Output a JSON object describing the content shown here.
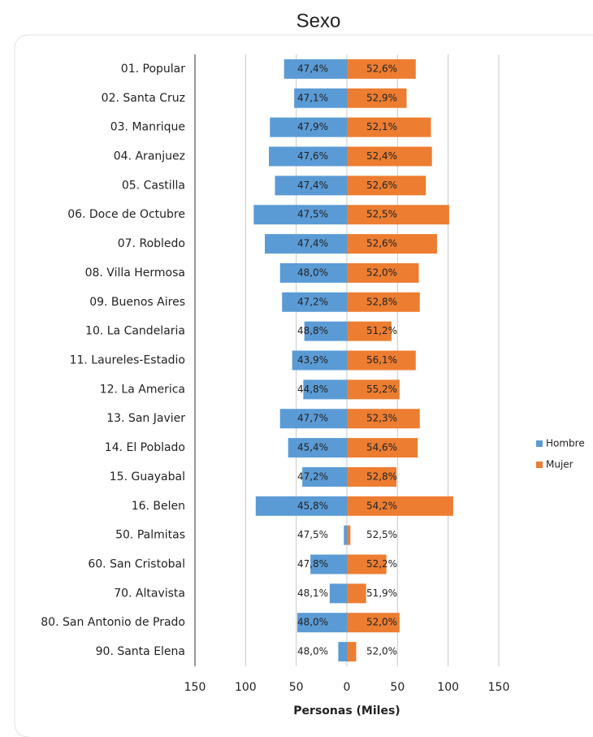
{
  "chart_data": {
    "type": "bar",
    "orientation": "horizontal",
    "stacked": true,
    "title": "Sexo",
    "x_label": "Personas (Miles)",
    "categories": [
      "01. Popular",
      "02. Santa Cruz",
      "03. Manrique",
      "04. Aranjuez",
      "05. Castilla",
      "06. Doce de Octubre",
      "07. Robledo",
      "08. Villa Hermosa",
      "09. Buenos Aires",
      "10. La Candelaria",
      "11. Laureles-Estadio",
      "12. La America",
      "13. San Javier",
      "14. El Poblado",
      "15. Guayabal",
      "16. Belen",
      "50. Palmitas",
      "60. San Cristobal",
      "70. Altavista",
      "80. San Antonio de Prado",
      "90. Santa Elena"
    ],
    "series": [
      {
        "name": "Hombre",
        "color": "#5b9bd5",
        "values": [
          -62,
          -52,
          -76,
          -77,
          -71,
          -92,
          -81,
          -66,
          -64,
          -42,
          -54,
          -43,
          -66,
          -58,
          -44,
          -90,
          -3,
          -36,
          -17,
          -49,
          -8.5
        ],
        "share_labels": [
          "47,4%",
          "47,1%",
          "47,9%",
          "47,6%",
          "47,4%",
          "47,5%",
          "47,4%",
          "48,0%",
          "47,2%",
          "48,8%",
          "43,9%",
          "44,8%",
          "47,7%",
          "45,4%",
          "47,2%",
          "45,8%",
          "47,5%",
          "47,8%",
          "48,1%",
          "48,0%",
          "48,0%"
        ]
      },
      {
        "name": "Mujer",
        "color": "#ed7d31",
        "values": [
          68,
          59,
          83,
          84,
          78,
          101,
          89,
          71,
          72,
          44,
          68,
          52,
          72,
          70,
          49,
          105,
          3.5,
          39,
          19,
          52,
          9.2
        ],
        "share_labels": [
          "52,6%",
          "52,9%",
          "52,1%",
          "52,4%",
          "52,6%",
          "52,5%",
          "52,6%",
          "52,0%",
          "52,8%",
          "51,2%",
          "56,1%",
          "55,2%",
          "52,3%",
          "54,6%",
          "52,8%",
          "54,2%",
          "52,5%",
          "52,2%",
          "51,9%",
          "52,0%",
          "52,0%"
        ]
      }
    ],
    "xlim": [
      -150,
      150
    ],
    "xticks": [
      {
        "value": -150,
        "label": "150"
      },
      {
        "value": -100,
        "label": "100"
      },
      {
        "value": -50,
        "label": "50"
      },
      0,
      50,
      100,
      150
    ],
    "grid": true,
    "legend": "right"
  }
}
